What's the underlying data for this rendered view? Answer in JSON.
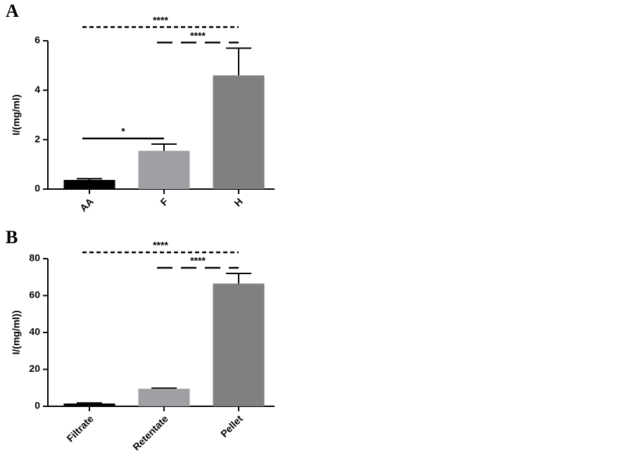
{
  "chart_data": [
    {
      "type": "bar",
      "panel": "A",
      "y_label": "I/(mg/ml)",
      "categories": [
        "AA",
        "F",
        "H"
      ],
      "values": [
        0.37,
        1.55,
        4.6
      ],
      "errors": [
        0.05,
        0.27,
        1.1
      ],
      "colors": [
        "#000000",
        "#a0a0a4",
        "#808080"
      ],
      "ylim": [
        0,
        6
      ],
      "yticks": [
        0,
        2,
        4,
        6
      ],
      "annotations": [
        {
          "text": "*",
          "between": [
            "AA",
            "F"
          ],
          "style": "solid"
        },
        {
          "text": "****",
          "between": [
            "F",
            "H"
          ],
          "style": "long-dashed"
        },
        {
          "text": "****",
          "between": [
            "AA",
            "H"
          ],
          "style": "dashed"
        }
      ]
    },
    {
      "type": "bar",
      "panel": "B",
      "y_label": "I/(mg/ml))",
      "categories": [
        "Filtrate",
        "Retentate",
        "Pellet"
      ],
      "values": [
        1.5,
        9.5,
        66.5
      ],
      "errors": [
        0.3,
        0.3,
        5.5
      ],
      "colors": [
        "#000000",
        "#a0a0a4",
        "#808080"
      ],
      "ylim": [
        0,
        80
      ],
      "yticks": [
        0,
        20,
        40,
        60,
        80
      ],
      "annotations": [
        {
          "text": "****",
          "between": [
            "Retentate",
            "Pellet"
          ],
          "style": "long-dashed"
        },
        {
          "text": "****",
          "between": [
            "Filtrate",
            "Pellet"
          ],
          "style": "dashed"
        }
      ]
    }
  ]
}
